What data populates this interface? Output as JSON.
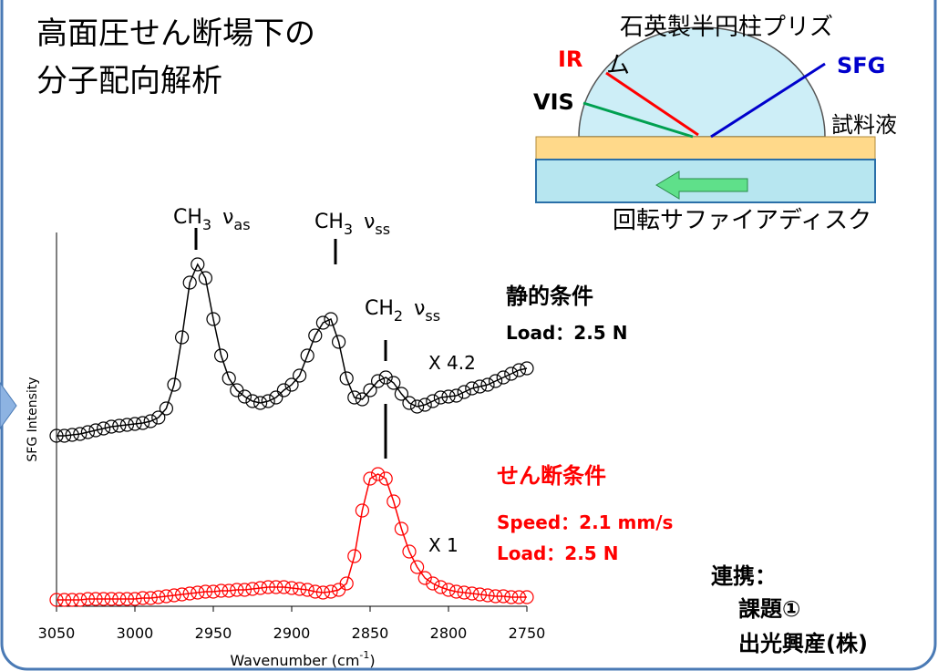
{
  "slide": {
    "title": [
      "高面圧せん断場下の",
      "分子配向解析"
    ]
  },
  "diagram": {
    "prism": [
      "石英製半円柱プリズ",
      "ム"
    ],
    "ir": "IR",
    "vis": "VIS",
    "sfg": "SFG",
    "sample": "試料液",
    "disk": "回転サファイアディスク"
  },
  "chart_data": {
    "type": "line",
    "markers": true,
    "x_label": [
      "Wavenumber (cm",
      "-1",
      ")"
    ],
    "y_label": "SFG Intensity",
    "xlim": [
      3050,
      2750
    ],
    "xticks": [
      3050,
      3000,
      2950,
      2900,
      2850,
      2800,
      2750
    ],
    "ylim": [
      15,
      425
    ],
    "x": [
      3050,
      3045,
      3040,
      3035,
      3030,
      3025,
      3020,
      3015,
      3010,
      3005,
      3000,
      2995,
      2990,
      2985,
      2980,
      2975,
      2970,
      2965,
      2960,
      2955,
      2950,
      2945,
      2940,
      2935,
      2930,
      2925,
      2920,
      2915,
      2910,
      2905,
      2900,
      2895,
      2890,
      2885,
      2880,
      2875,
      2870,
      2865,
      2860,
      2855,
      2850,
      2845,
      2840,
      2835,
      2830,
      2825,
      2820,
      2815,
      2810,
      2805,
      2800,
      2795,
      2790,
      2785,
      2780,
      2775,
      2770,
      2765,
      2760,
      2755,
      2750
    ],
    "series": [
      {
        "name": "静的条件",
        "color": "#000000",
        "conditions": [
          "Load：2.5 N"
        ],
        "scale": "X 4.2",
        "values": [
          202,
          202,
          203,
          204,
          206,
          208,
          210,
          212,
          213,
          214,
          215,
          216,
          218,
          222,
          232,
          258,
          310,
          370,
          390,
          375,
          330,
          290,
          265,
          252,
          245,
          240,
          238,
          240,
          244,
          252,
          258,
          268,
          290,
          312,
          326,
          330,
          305,
          265,
          244,
          242,
          252,
          262,
          266,
          260,
          248,
          238,
          234,
          236,
          240,
          244,
          245,
          246,
          250,
          254,
          256,
          258,
          262,
          266,
          270,
          274,
          276
        ]
      },
      {
        "name": "せん断条件",
        "color": "#ff0000",
        "conditions": [
          "Speed：2.1 mm/s",
          "Load：2.5 N"
        ],
        "scale": "X 1",
        "values": [
          22,
          22,
          22,
          22,
          23,
          23,
          23,
          23,
          23,
          23,
          23,
          24,
          24,
          25,
          26,
          27,
          28,
          29,
          30,
          31,
          31,
          32,
          32,
          33,
          33,
          34,
          35,
          36,
          36,
          36,
          35,
          34,
          33,
          31,
          30,
          31,
          33,
          40,
          70,
          120,
          155,
          160,
          155,
          130,
          100,
          75,
          58,
          46,
          40,
          36,
          33,
          31,
          30,
          29,
          28,
          27,
          26,
          26,
          25,
          25,
          25
        ]
      }
    ],
    "peak_labels": [
      {
        "species": "CH",
        "species_sub": "3",
        "mode": "ν",
        "mode_sub": "as"
      },
      {
        "species": "CH",
        "species_sub": "3",
        "mode": "ν",
        "mode_sub": "ss"
      },
      {
        "species": "CH",
        "species_sub": "2",
        "mode": "ν",
        "mode_sub": "ss"
      }
    ]
  },
  "collaboration": [
    "連携：",
    "課題①",
    "出光興産(株)"
  ]
}
